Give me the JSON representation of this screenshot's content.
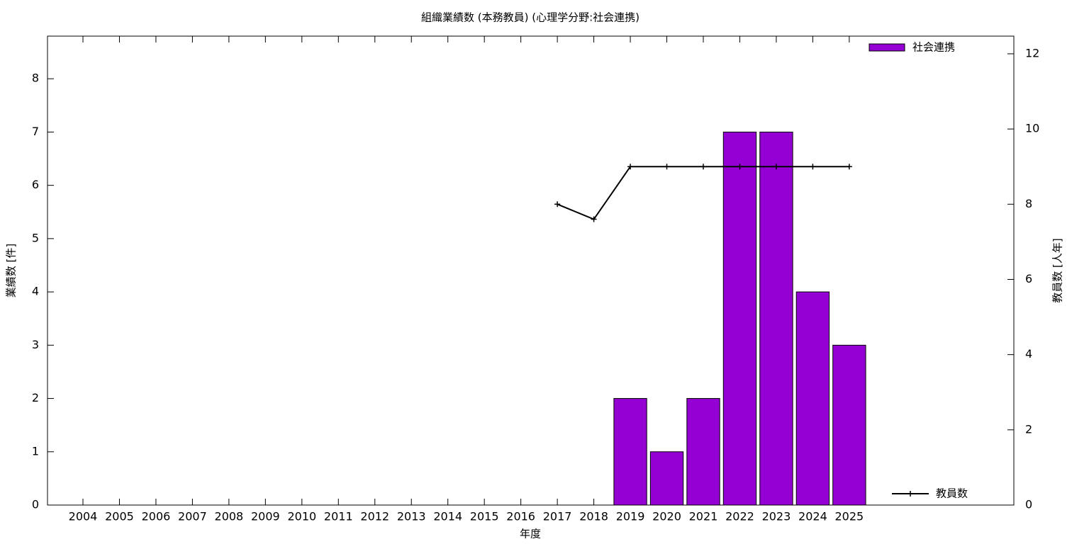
{
  "chart_data": {
    "type": "bar_line",
    "title": "組織業績数 (本務教員) (心理学分野:社会連携)",
    "x_label": "年度",
    "y_label": "業績数 [件]",
    "y2_label": "教員数 [人年]",
    "categories": [
      "2004",
      "2005",
      "2006",
      "2007",
      "2008",
      "2009",
      "2010",
      "2011",
      "2012",
      "2013",
      "2014",
      "2015",
      "2016",
      "2017",
      "2018",
      "2019",
      "2020",
      "2021",
      "2022",
      "2023",
      "2024",
      "2025"
    ],
    "series": [
      {
        "name": "社会連携",
        "type": "bar",
        "color": "#9400d3",
        "values": [
          0,
          0,
          0,
          0,
          0,
          0,
          0,
          0,
          0,
          0,
          0,
          0,
          0,
          0,
          0,
          2,
          1,
          2,
          7,
          7,
          4,
          3
        ]
      },
      {
        "name": "教員数",
        "type": "line",
        "axis": "y2",
        "color": "#000000",
        "values": [
          null,
          null,
          null,
          null,
          null,
          null,
          null,
          null,
          null,
          null,
          null,
          null,
          null,
          8,
          7.6,
          9,
          9,
          9,
          9,
          9,
          9,
          9
        ]
      }
    ],
    "ylim": [
      0,
      8.8
    ],
    "yticks": [
      0,
      1,
      2,
      3,
      4,
      5,
      6,
      7,
      8
    ],
    "y2lim": [
      0,
      12.47
    ],
    "y2ticks": [
      0,
      2,
      4,
      6,
      8,
      10,
      12
    ],
    "grid": false
  }
}
